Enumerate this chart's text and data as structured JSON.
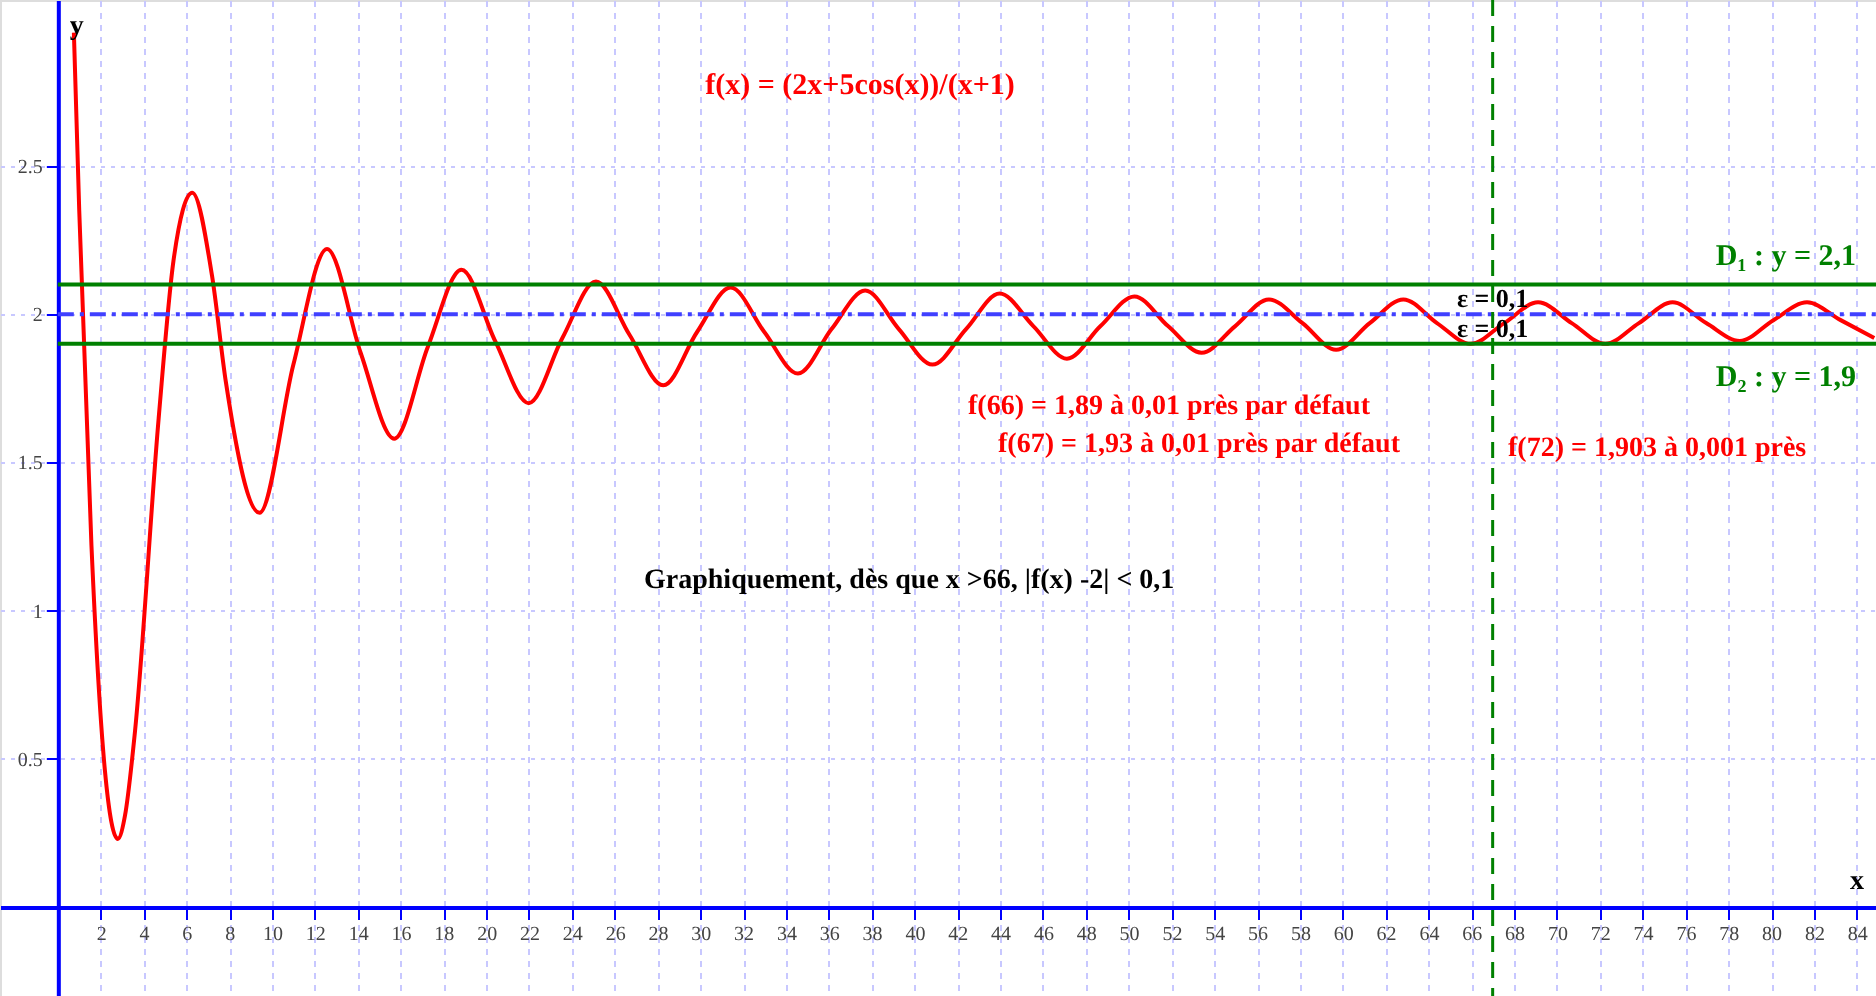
{
  "chart_data": {
    "type": "line",
    "title": "f(x) = (2x+5cos(x))/(x+1)",
    "xlabel": "x",
    "ylabel": "y",
    "x": [
      0.75,
      1.0,
      1.57,
      2.2,
      2.8,
      3.14,
      3.6,
      4.71,
      5.4,
      6.28,
      7.2,
      7.85,
      9.42,
      11.0,
      12.57,
      14.14,
      15.71,
      17.28,
      18.85,
      20.42,
      21.99,
      23.56,
      25.13,
      26.7,
      28.27,
      29.85,
      31.42,
      32.99,
      34.56,
      36.13,
      37.7,
      39.27,
      40.84,
      42.41,
      43.98,
      45.55,
      47.12,
      48.69,
      50.27,
      51.84,
      53.41,
      54.98,
      56.55,
      58.12,
      59.69,
      61.26,
      62.83,
      64.4,
      65.97,
      67.54,
      69.12,
      70.69,
      72.26,
      73.83,
      75.4,
      76.97,
      78.54,
      80.11,
      81.68,
      83.25,
      84.82
    ],
    "series": [
      {
        "color": "#ff0000",
        "values": [
          2.95,
          2.35,
          1.22,
          0.46,
          0.23,
          0.31,
          0.59,
          1.65,
          2.18,
          2.41,
          2.13,
          1.77,
          1.33,
          1.83,
          2.22,
          1.87,
          1.58,
          1.89,
          2.15,
          1.91,
          1.7,
          1.92,
          2.11,
          1.93,
          1.76,
          1.94,
          2.09,
          1.94,
          1.8,
          1.95,
          2.08,
          1.95,
          1.83,
          1.95,
          2.07,
          1.96,
          1.85,
          1.96,
          2.06,
          1.96,
          1.87,
          1.96,
          2.05,
          1.97,
          1.88,
          1.97,
          2.05,
          1.97,
          1.9,
          1.97,
          2.04,
          1.97,
          1.9,
          1.97,
          2.04,
          1.97,
          1.91,
          1.98,
          2.04,
          1.98,
          1.92
        ]
      }
    ],
    "xlim": [
      -2.7,
      84.9
    ],
    "ylim": [
      -0.3,
      3.06
    ],
    "xticks": [
      2,
      4,
      6,
      8,
      10,
      12,
      14,
      16,
      18,
      20,
      22,
      24,
      26,
      28,
      30,
      32,
      34,
      36,
      38,
      40,
      42,
      44,
      46,
      48,
      50,
      52,
      54,
      56,
      58,
      60,
      62,
      64,
      66,
      68,
      70,
      72,
      74,
      76,
      78,
      80,
      82,
      84
    ],
    "yticks": [
      0.5,
      1,
      1.5,
      2,
      2.5
    ],
    "grid": true,
    "marker": "none",
    "line_style": "solid",
    "ref_lines": [
      {
        "axis": "y",
        "value": 2.1,
        "label": "D₁ : y = 2,1",
        "color": "#008000",
        "line_style": "solid"
      },
      {
        "axis": "y",
        "value": 1.9,
        "label": "D₂ : y = 1,9",
        "color": "#008000",
        "line_style": "solid"
      },
      {
        "axis": "y",
        "value": 2,
        "color": "#4040ff",
        "line_style": "dashdot"
      },
      {
        "axis": "x",
        "value": 67,
        "color": "#008000",
        "line_style": "dashed"
      }
    ],
    "annotations": [
      {
        "text": "ε = 0,1",
        "x": 67,
        "y": 2.05
      },
      {
        "text": "ε = 0,1",
        "x": 67,
        "y": 1.95
      },
      "f(66) = 1,89 à 0,01 près par défaut",
      "f(67) = 1,93 à 0,01 près par défaut",
      "f(72) = 1,903 à 0,001 près",
      "Graphiquement, dès que x >66,  |f(x) -2| < 0,1"
    ]
  }
}
